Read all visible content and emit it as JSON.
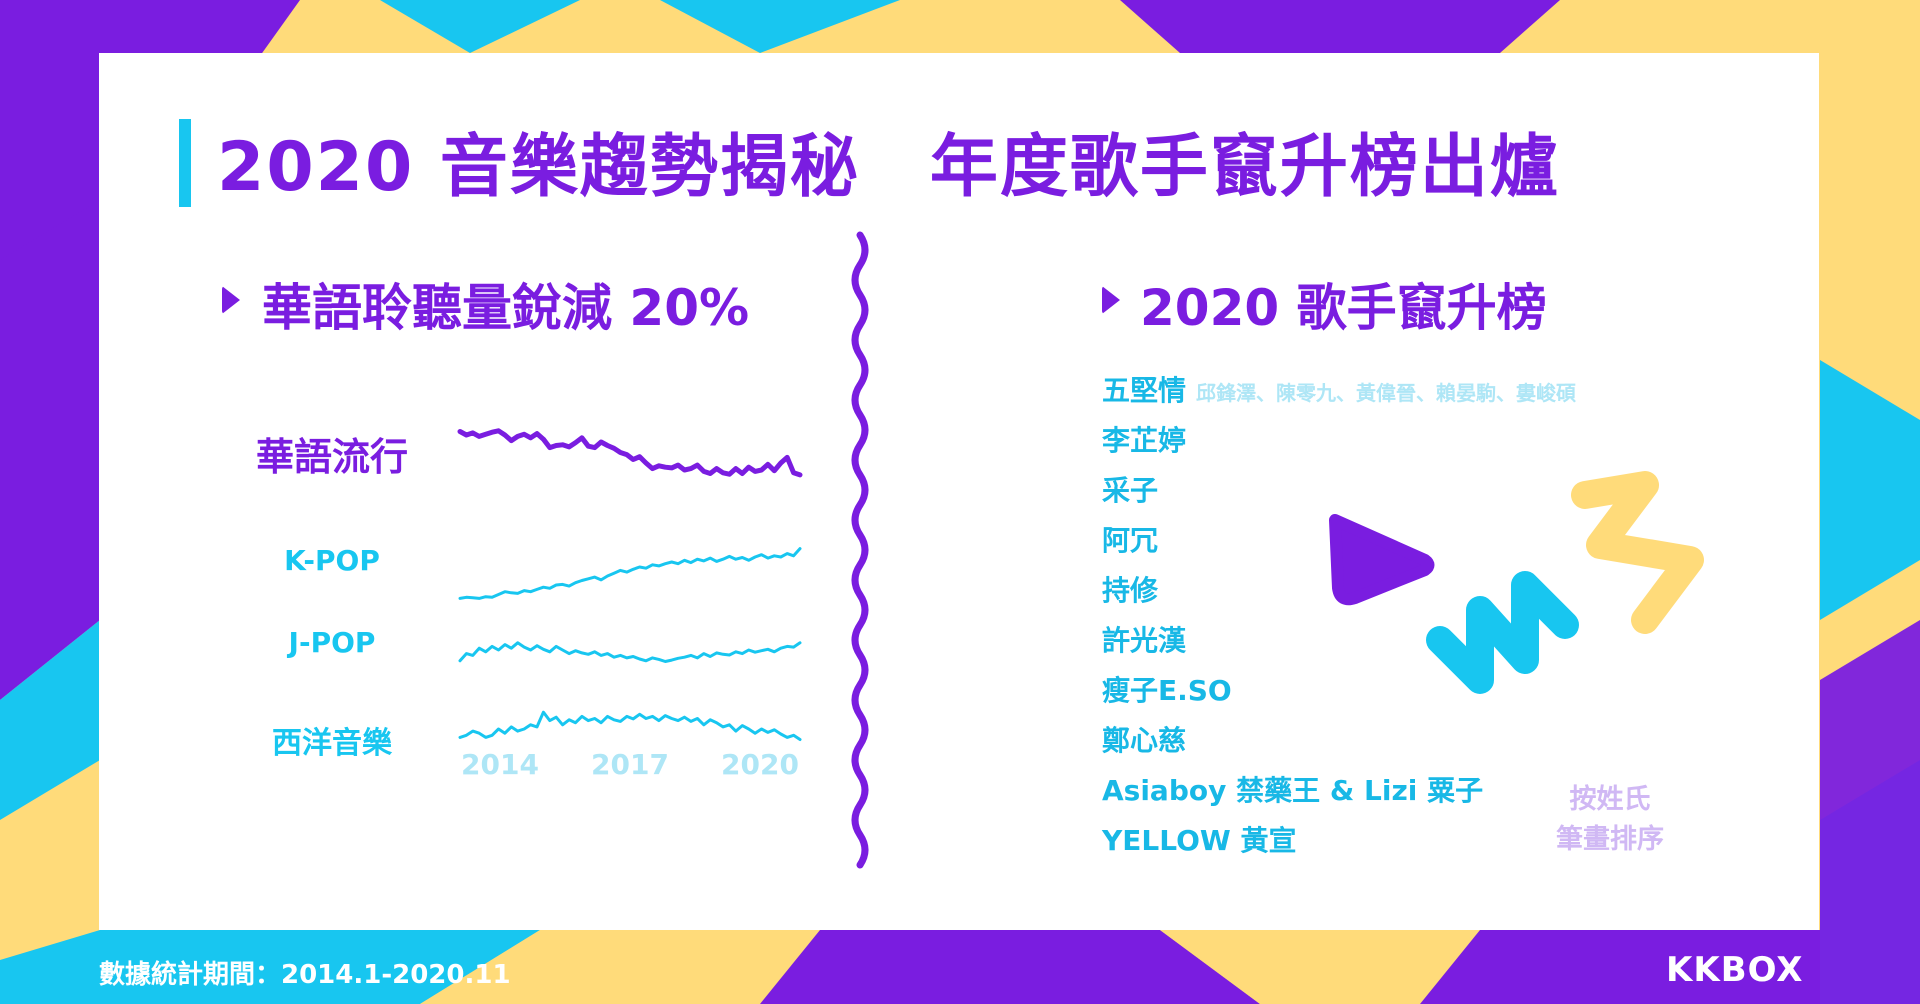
{
  "title": "2020 音樂趨勢揭秘　年度歌手竄升榜出爐",
  "left_section": {
    "heading": "華語聆聽量銳減 20%",
    "genres": [
      {
        "name": "華語流行",
        "color": "#7a1de0",
        "values": [
          0.95,
          0.9,
          0.93,
          0.88,
          0.91,
          0.94,
          0.96,
          0.9,
          0.82,
          0.88,
          0.91,
          0.86,
          0.92,
          0.84,
          0.72,
          0.75,
          0.76,
          0.73,
          0.79,
          0.86,
          0.74,
          0.72,
          0.8,
          0.75,
          0.71,
          0.65,
          0.62,
          0.55,
          0.59,
          0.5,
          0.42,
          0.46,
          0.44,
          0.43,
          0.47,
          0.4,
          0.42,
          0.47,
          0.38,
          0.35,
          0.42,
          0.36,
          0.34,
          0.42,
          0.35,
          0.44,
          0.38,
          0.4,
          0.48,
          0.39,
          0.5,
          0.58,
          0.36,
          0.33
        ]
      },
      {
        "name": "K-POP",
        "color": "#18c6f0",
        "values": [
          0.1,
          0.12,
          0.11,
          0.1,
          0.13,
          0.12,
          0.17,
          0.22,
          0.2,
          0.19,
          0.24,
          0.22,
          0.26,
          0.3,
          0.28,
          0.34,
          0.35,
          0.32,
          0.38,
          0.42,
          0.45,
          0.48,
          0.43,
          0.5,
          0.55,
          0.6,
          0.57,
          0.62,
          0.66,
          0.64,
          0.7,
          0.68,
          0.72,
          0.75,
          0.72,
          0.78,
          0.74,
          0.8,
          0.77,
          0.82,
          0.76,
          0.8,
          0.85,
          0.8,
          0.83,
          0.78,
          0.84,
          0.88,
          0.82,
          0.86,
          0.84,
          0.9,
          0.86,
          0.99
        ]
      },
      {
        "name": "J-POP",
        "color": "#18c6f0",
        "values": [
          0.2,
          0.4,
          0.35,
          0.55,
          0.45,
          0.6,
          0.5,
          0.65,
          0.55,
          0.7,
          0.58,
          0.5,
          0.62,
          0.52,
          0.45,
          0.6,
          0.5,
          0.4,
          0.48,
          0.42,
          0.38,
          0.45,
          0.35,
          0.4,
          0.3,
          0.35,
          0.28,
          0.32,
          0.25,
          0.2,
          0.28,
          0.24,
          0.18,
          0.22,
          0.27,
          0.3,
          0.35,
          0.28,
          0.4,
          0.32,
          0.42,
          0.38,
          0.36,
          0.45,
          0.4,
          0.5,
          0.44,
          0.48,
          0.52,
          0.45,
          0.55,
          0.6,
          0.58,
          0.7
        ]
      },
      {
        "name": "西洋音樂",
        "color": "#18c6f0",
        "values": [
          0.3,
          0.35,
          0.45,
          0.4,
          0.3,
          0.35,
          0.5,
          0.4,
          0.55,
          0.45,
          0.5,
          0.6,
          0.55,
          0.9,
          0.7,
          0.78,
          0.6,
          0.72,
          0.65,
          0.8,
          0.7,
          0.75,
          0.65,
          0.8,
          0.72,
          0.68,
          0.8,
          0.74,
          0.85,
          0.75,
          0.8,
          0.7,
          0.82,
          0.75,
          0.7,
          0.78,
          0.68,
          0.75,
          0.6,
          0.72,
          0.65,
          0.55,
          0.6,
          0.45,
          0.58,
          0.5,
          0.4,
          0.5,
          0.42,
          0.48,
          0.38,
          0.3,
          0.35,
          0.25
        ]
      }
    ],
    "years": [
      "2014",
      "2017",
      "2020"
    ]
  },
  "right_section": {
    "heading": "2020 歌手竄升榜",
    "singers": [
      {
        "name": "五堅情",
        "members": "邱鋒澤、陳零九、黃偉晉、賴晏駒、婁峻碩"
      },
      {
        "name": "李芷婷"
      },
      {
        "name": "采子"
      },
      {
        "name": "阿冗"
      },
      {
        "name": "持修"
      },
      {
        "name": "許光漢"
      },
      {
        "name": "瘦子E.SO"
      },
      {
        "name": "鄭心慈"
      },
      {
        "name": "Asiaboy 禁藥王 & Lizi 粟子"
      },
      {
        "name": "YELLOW 黃宣"
      }
    ],
    "sort_note": [
      "按姓氏",
      "筆畫排序"
    ]
  },
  "footer": {
    "period": "數據統計期間：2014.1-2020.11",
    "logo": "KKBOX"
  },
  "colors": {
    "purple": "#7a1de0",
    "cyan": "#18c6f0",
    "yellow": "#ffdb7a",
    "light_cyan": "#aee6f6",
    "lavender": "#d0b8f4"
  }
}
